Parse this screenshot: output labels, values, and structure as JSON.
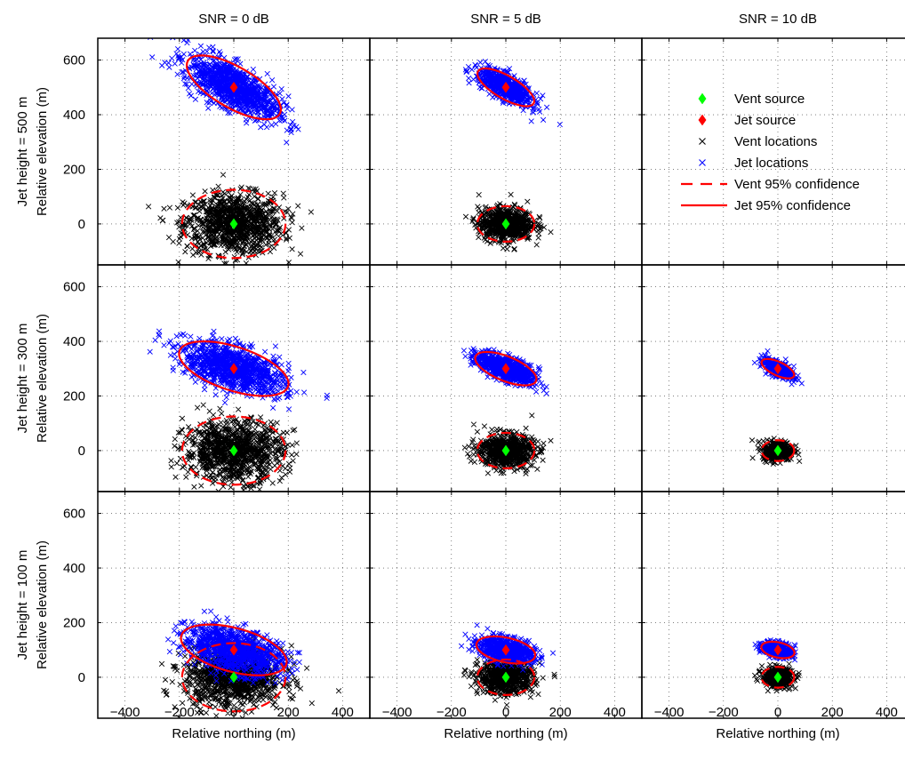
{
  "chart_data": {
    "type": "scatter",
    "layout": "3x3 grid of panels",
    "column_titles": [
      "SNR = 0 dB",
      "SNR = 5 dB",
      "SNR = 10 dB"
    ],
    "row_titles": [
      "Jet height = 500 m",
      "Jet height = 300 m",
      "Jet height = 100 m"
    ],
    "xlabel": "Relative northing (m)",
    "ylabel": "Relative elevation (m)",
    "xlim": [
      -500,
      500
    ],
    "ylim": [
      -150,
      680
    ],
    "xticks": [
      -400,
      -200,
      0,
      200,
      400
    ],
    "yticks": [
      0,
      200,
      400,
      600
    ],
    "grid": "dotted",
    "legend": {
      "placement": "top-right panel (Jet height = 500 m, SNR = 10 dB)",
      "entries": [
        "Vent source",
        "Jet source",
        "Vent locations",
        "Jet locations",
        "Vent 95% confidence",
        "Jet 95% confidence"
      ]
    },
    "colors": {
      "vent_source": "#00ff00",
      "jet_source": "#ff0000",
      "vent_locations": "#000000",
      "jet_locations": "#0000ff",
      "confidence": "#ff0000"
    },
    "panels": [
      {
        "row": 0,
        "col": 0,
        "jet_height": 500,
        "snr": 0,
        "vent_source": [
          0,
          0
        ],
        "jet_source": [
          0,
          500
        ],
        "vent_ellipse": {
          "center": [
            0,
            0
          ],
          "semi_major": 190,
          "semi_minor": 125,
          "angle_deg": 0
        },
        "jet_ellipse": {
          "center": [
            0,
            500
          ],
          "semi_major": 195,
          "semi_minor": 75,
          "angle_deg": -30
        },
        "vent_cloud": {
          "sd": [
            90,
            55
          ],
          "angle_deg": 0,
          "n": 1000
        },
        "jet_cloud": {
          "sd": [
            95,
            36
          ],
          "angle_deg": -30,
          "n": 1000
        }
      },
      {
        "row": 0,
        "col": 1,
        "jet_height": 500,
        "snr": 5,
        "vent_source": [
          0,
          0
        ],
        "jet_source": [
          0,
          500
        ],
        "vent_ellipse": {
          "center": [
            0,
            0
          ],
          "semi_major": 105,
          "semi_minor": 65,
          "angle_deg": 0
        },
        "jet_ellipse": {
          "center": [
            0,
            500
          ],
          "semi_major": 118,
          "semi_minor": 42,
          "angle_deg": -30
        },
        "vent_cloud": {
          "sd": [
            50,
            30
          ],
          "angle_deg": 0,
          "n": 700
        },
        "jet_cloud": {
          "sd": [
            56,
            20
          ],
          "angle_deg": -30,
          "n": 700
        }
      },
      {
        "row": 0,
        "col": 2,
        "jet_height": 500,
        "snr": 10,
        "empty": true
      },
      {
        "row": 1,
        "col": 0,
        "jet_height": 300,
        "snr": 0,
        "vent_source": [
          0,
          0
        ],
        "jet_source": [
          0,
          300
        ],
        "vent_ellipse": {
          "center": [
            0,
            0
          ],
          "semi_major": 190,
          "semi_minor": 125,
          "angle_deg": 0
        },
        "jet_ellipse": {
          "center": [
            0,
            300
          ],
          "semi_major": 210,
          "semi_minor": 80,
          "angle_deg": -18
        },
        "vent_cloud": {
          "sd": [
            90,
            55
          ],
          "angle_deg": 0,
          "n": 1000
        },
        "jet_cloud": {
          "sd": [
            100,
            38
          ],
          "angle_deg": -18,
          "n": 1000
        }
      },
      {
        "row": 1,
        "col": 1,
        "jet_height": 300,
        "snr": 5,
        "vent_source": [
          0,
          0
        ],
        "jet_source": [
          0,
          300
        ],
        "vent_ellipse": {
          "center": [
            0,
            0
          ],
          "semi_major": 105,
          "semi_minor": 65,
          "angle_deg": 0
        },
        "jet_ellipse": {
          "center": [
            0,
            300
          ],
          "semi_major": 120,
          "semi_minor": 45,
          "angle_deg": -22
        },
        "vent_cloud": {
          "sd": [
            50,
            30
          ],
          "angle_deg": 0,
          "n": 700
        },
        "jet_cloud": {
          "sd": [
            57,
            21
          ],
          "angle_deg": -22,
          "n": 700
        }
      },
      {
        "row": 1,
        "col": 2,
        "jet_height": 300,
        "snr": 10,
        "vent_source": [
          0,
          0
        ],
        "jet_source": [
          0,
          300
        ],
        "vent_ellipse": {
          "center": [
            0,
            0
          ],
          "semi_major": 60,
          "semi_minor": 38,
          "angle_deg": 0
        },
        "jet_ellipse": {
          "center": [
            0,
            300
          ],
          "semi_major": 65,
          "semi_minor": 25,
          "angle_deg": -25
        },
        "vent_cloud": {
          "sd": [
            28,
            18
          ],
          "angle_deg": 0,
          "n": 400
        },
        "jet_cloud": {
          "sd": [
            31,
            12
          ],
          "angle_deg": -25,
          "n": 400
        }
      },
      {
        "row": 2,
        "col": 0,
        "jet_height": 100,
        "snr": 0,
        "vent_source": [
          0,
          0
        ],
        "jet_source": [
          0,
          100
        ],
        "vent_ellipse": {
          "center": [
            0,
            0
          ],
          "semi_major": 190,
          "semi_minor": 125,
          "angle_deg": 0
        },
        "jet_ellipse": {
          "center": [
            0,
            100
          ],
          "semi_major": 200,
          "semi_minor": 80,
          "angle_deg": -15
        },
        "vent_cloud": {
          "sd": [
            90,
            55
          ],
          "angle_deg": 0,
          "n": 1000
        },
        "jet_cloud": {
          "sd": [
            95,
            38
          ],
          "angle_deg": -15,
          "n": 1000
        }
      },
      {
        "row": 2,
        "col": 1,
        "jet_height": 100,
        "snr": 5,
        "vent_source": [
          0,
          0
        ],
        "jet_source": [
          0,
          100
        ],
        "vent_ellipse": {
          "center": [
            0,
            0
          ],
          "semi_major": 105,
          "semi_minor": 65,
          "angle_deg": 0
        },
        "jet_ellipse": {
          "center": [
            0,
            100
          ],
          "semi_major": 110,
          "semi_minor": 45,
          "angle_deg": -12
        },
        "vent_cloud": {
          "sd": [
            50,
            30
          ],
          "angle_deg": 0,
          "n": 700
        },
        "jet_cloud": {
          "sd": [
            52,
            21
          ],
          "angle_deg": -12,
          "n": 700
        }
      },
      {
        "row": 2,
        "col": 2,
        "jet_height": 100,
        "snr": 10,
        "vent_source": [
          0,
          0
        ],
        "jet_source": [
          0,
          100
        ],
        "vent_ellipse": {
          "center": [
            0,
            0
          ],
          "semi_major": 60,
          "semi_minor": 38,
          "angle_deg": 0
        },
        "jet_ellipse": {
          "center": [
            0,
            100
          ],
          "semi_major": 62,
          "semi_minor": 28,
          "angle_deg": -12
        },
        "vent_cloud": {
          "sd": [
            28,
            18
          ],
          "angle_deg": 0,
          "n": 400
        },
        "jet_cloud": {
          "sd": [
            29,
            13
          ],
          "angle_deg": -12,
          "n": 400
        }
      }
    ]
  }
}
